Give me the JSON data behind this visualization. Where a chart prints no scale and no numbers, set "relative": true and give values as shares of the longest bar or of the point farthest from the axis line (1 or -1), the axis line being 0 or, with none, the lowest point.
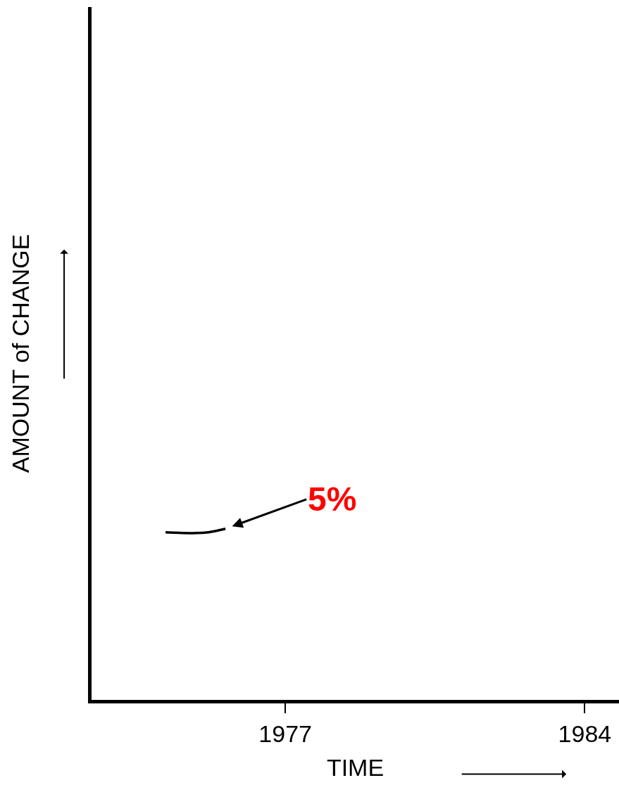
{
  "chart_data": {
    "type": "line",
    "relative": true,
    "xlabel": "TIME",
    "ylabel": "AMOUNT of CHANGE",
    "x": [
      1974.2,
      1974.9,
      1975.2,
      1975.6
    ],
    "series": [
      {
        "color": "#000000",
        "values": [
          0.98,
          0.975,
          0.98,
          1
        ]
      }
    ],
    "xlim": [
      1972.47,
      1984.8
    ],
    "xticks": [
      1977,
      1984
    ],
    "annotations": [
      {
        "text": "5%",
        "x": 1975.6,
        "y": 1
      }
    ],
    "marker": "none",
    "line_style": "solid"
  }
}
